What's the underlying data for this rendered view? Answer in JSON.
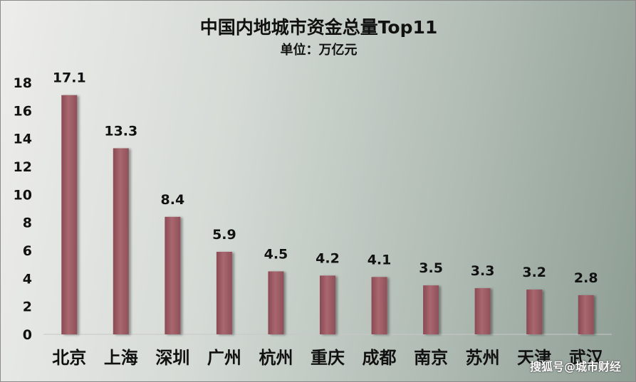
{
  "chart_data": {
    "type": "bar",
    "title": "中国内地城市资金总量Top11",
    "subtitle": "单位：万亿元",
    "categories": [
      "北京",
      "上海",
      "深圳",
      "广州",
      "杭州",
      "重庆",
      "成都",
      "南京",
      "苏州",
      "天津",
      "武汉"
    ],
    "values": [
      17.1,
      13.3,
      8.4,
      5.9,
      4.5,
      4.2,
      4.1,
      3.5,
      3.3,
      3.2,
      2.8
    ],
    "value_labels": [
      "17.1",
      "13.3",
      "8.4",
      "5.9",
      "4.5",
      "4.2",
      "4.1",
      "3.5",
      "3.3",
      "3.2",
      "2.8"
    ],
    "ylim": [
      0,
      18
    ],
    "yticks": [
      "0",
      "2",
      "4",
      "6",
      "8",
      "10",
      "12",
      "14",
      "16",
      "18"
    ],
    "grid": false,
    "bar_color": "#9e5d66"
  },
  "watermark": "搜狐号@城市财经"
}
